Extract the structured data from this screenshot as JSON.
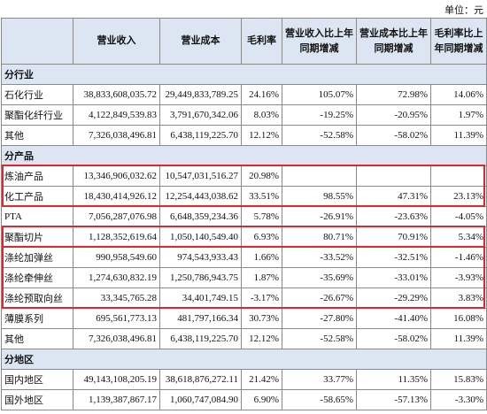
{
  "unit": "单位：元",
  "table": {
    "header": [
      null,
      "营业收入",
      "营业成本",
      "毛利率",
      "营业收入比上年同期增减",
      "营业成本比上年同期增减",
      "毛利率比上年同期增减"
    ],
    "rows": [
      [
        "分行业"
      ],
      [
        "石化行业",
        "38,833,608,035.72",
        "29,449,833,789.25",
        "24.16%",
        "105.07%",
        "72.98%",
        "14.06%"
      ],
      [
        "聚酯化纤行业",
        "4,122,849,539.83",
        "3,791,670,342.06",
        "8.03%",
        "-19.25%",
        "-20.95%",
        "1.97%"
      ],
      [
        "其他",
        "7,326,038,496.81",
        "6,438,119,225.70",
        "12.12%",
        "-52.58%",
        "-58.02%",
        "11.39%"
      ],
      [
        "分产品"
      ],
      [
        "炼油产品",
        "13,346,906,032.62",
        "10,547,031,516.27",
        "20.98%",
        null,
        null,
        null
      ],
      [
        "化工产品",
        "18,430,414,926.12",
        "12,254,443,038.62",
        "33.51%",
        "98.55%",
        "47.31%",
        "23.13%"
      ],
      [
        "PTA",
        "7,056,287,076.98",
        "6,648,359,234.36",
        "5.78%",
        "-26.91%",
        "-23.63%",
        "-4.05%"
      ],
      [
        "聚酯切片",
        "1,128,352,619.64",
        "1,050,140,549.40",
        "6.93%",
        "80.71%",
        "70.91%",
        "5.34%"
      ],
      [
        "涤纶加弹丝",
        "990,958,549.60",
        "974,543,933.43",
        "1.66%",
        "-33.52%",
        "-32.51%",
        "-1.46%"
      ],
      [
        "涤纶牵伸丝",
        "1,274,630,832.19",
        "1,250,786,943.75",
        "1.87%",
        "-35.69%",
        "-33.01%",
        "-3.93%"
      ],
      [
        "涤纶预取向丝",
        "33,345,765.28",
        "34,401,749.15",
        "-3.17%",
        "-26.67%",
        "-29.29%",
        "3.83%"
      ],
      [
        "薄膜系列",
        "695,561,773.13",
        "481,797,166.34",
        "30.73%",
        "-27.80%",
        "-41.40%",
        "16.08%"
      ],
      [
        "其他",
        "7,326,038,496.81",
        "6,438,119,225.70",
        "12.12%",
        "-52.58%",
        "-58.02%",
        "11.39%"
      ],
      [
        "分地区"
      ],
      [
        "国内地区",
        "49,143,108,205.19",
        "38,618,876,272.11",
        "21.42%",
        "33.77%",
        "11.35%",
        "15.83%"
      ],
      [
        "国外地区",
        "1,139,387,867.17",
        "1,060,747,084.90",
        "6.90%",
        "-58.65%",
        "-57.13%",
        "-3.30%"
      ]
    ]
  }
}
